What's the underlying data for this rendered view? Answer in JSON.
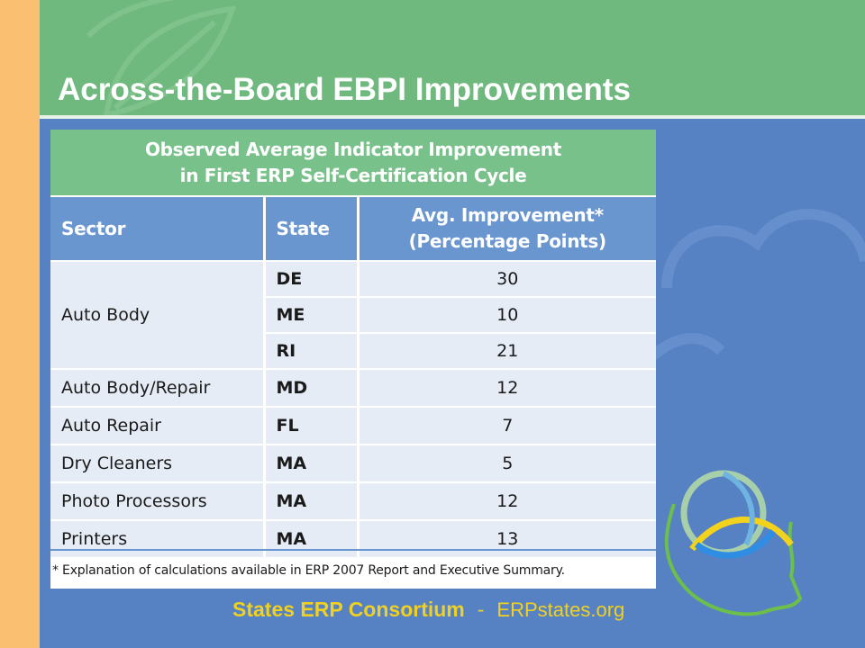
{
  "slide": {
    "title": "Across-the-Board EBPI Improvements"
  },
  "table": {
    "caption_line1": "Observed Average Indicator Improvement",
    "caption_line2": "in First ERP Self-Certification Cycle",
    "headers": {
      "sector": "Sector",
      "state": "State",
      "avg_line1": "Avg. Improvement*",
      "avg_line2": "(Percentage Points)"
    },
    "rows": [
      {
        "sector": "Auto Body",
        "states": [
          {
            "state": "DE",
            "value": "30"
          },
          {
            "state": "ME",
            "value": "10"
          },
          {
            "state": "RI",
            "value": "21"
          }
        ]
      },
      {
        "sector": "Auto Body/Repair",
        "states": [
          {
            "state": "MD",
            "value": "12"
          }
        ]
      },
      {
        "sector": "Auto Repair",
        "states": [
          {
            "state": "FL",
            "value": "7"
          }
        ]
      },
      {
        "sector": "Dry Cleaners",
        "states": [
          {
            "state": "MA",
            "value": "5"
          }
        ]
      },
      {
        "sector": "Photo Processors",
        "states": [
          {
            "state": "MA",
            "value": "12"
          }
        ]
      },
      {
        "sector": "Printers",
        "states": [
          {
            "state": "MA",
            "value": "13"
          }
        ]
      }
    ],
    "footnote": "* Explanation of calculations available in ERP 2007 Report and Executive Summary."
  },
  "footer": {
    "consortium": "States ERP Consortium",
    "separator": "-",
    "site": "ERPstates.org"
  },
  "colors": {
    "header_green": "#6fb87e",
    "slide_blue": "#5682c4",
    "stripe_orange": "#fbbf72",
    "footer_yellow": "#f0d020"
  }
}
